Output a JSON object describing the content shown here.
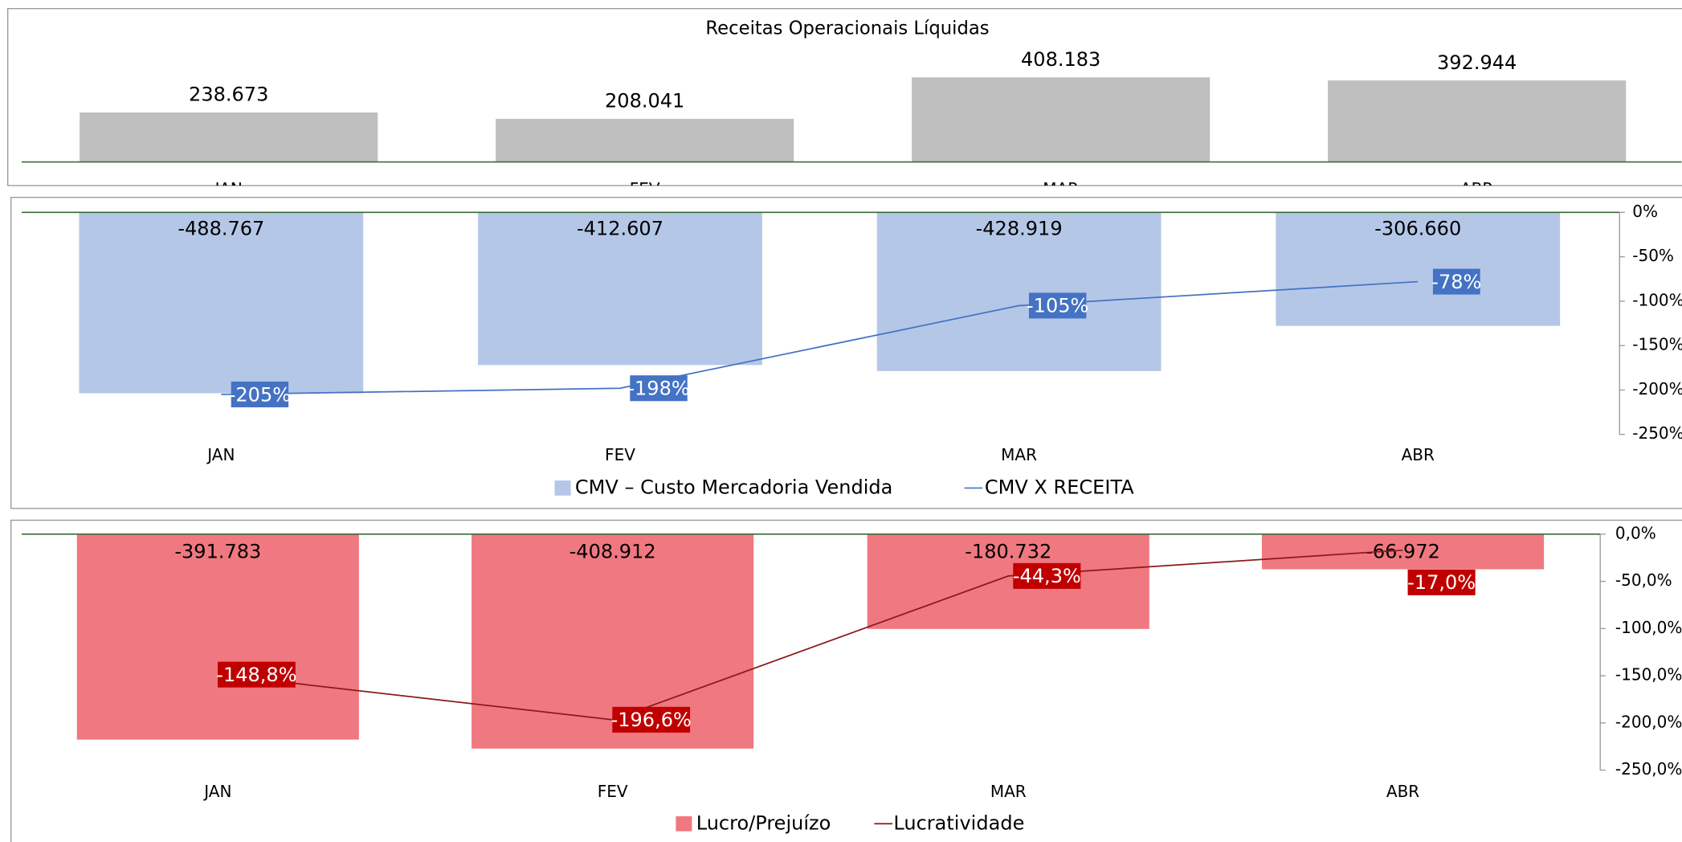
{
  "chart_data": [
    {
      "type": "bar",
      "title": "Receitas Operacionais Líquidas",
      "categories": [
        "JAN",
        "FEV",
        "MAR",
        "ABR"
      ],
      "values": [
        238673,
        208041,
        408183,
        392944
      ],
      "value_labels": [
        "238.673",
        "208.041",
        "408.183",
        "392.944"
      ],
      "color": "#bfbfbf",
      "ylim": [
        0,
        450000
      ]
    },
    {
      "type": "combo",
      "categories": [
        "JAN",
        "FEV",
        "MAR",
        "ABR"
      ],
      "series": [
        {
          "name": "CMV – Custo Mercadoria Vendida",
          "type": "bar",
          "color": "#b4c7e7",
          "values": [
            -488767,
            -412607,
            -428919,
            -306660
          ],
          "value_labels": [
            "-488.767",
            "-412.607",
            "-428.919",
            "-306.660"
          ]
        },
        {
          "name": "CMV X RECEITA",
          "type": "line",
          "axis": "y2",
          "color": "#4472c4",
          "values": [
            -205,
            -198,
            -105,
            -78
          ],
          "value_labels": [
            "-205%",
            "-198%",
            "-105%",
            "-78%"
          ]
        }
      ],
      "ylim": [
        -600000,
        0
      ],
      "y2lim": [
        -250,
        0
      ],
      "y2ticks": [
        {
          "value": 0,
          "label": "0%"
        },
        {
          "value": -50,
          "label": "-50%"
        },
        {
          "value": -100,
          "label": "-100%"
        },
        {
          "value": -150,
          "label": "-150%"
        },
        {
          "value": -200,
          "label": "-200%"
        },
        {
          "value": -250,
          "label": "-250%"
        }
      ]
    },
    {
      "type": "combo",
      "categories": [
        "JAN",
        "FEV",
        "MAR",
        "ABR"
      ],
      "series": [
        {
          "name": "Lucro/Prejuízo",
          "type": "bar",
          "color": "#f07880",
          "values": [
            -391783,
            -408912,
            -180732,
            -66972
          ],
          "value_labels": [
            "-391.783",
            "-408.912",
            "-180.732",
            "-66.972"
          ]
        },
        {
          "name": "Lucratividade",
          "type": "line",
          "axis": "y2",
          "color": "#8b1a1a",
          "values": [
            -148.8,
            -196.6,
            -44.3,
            -17.0
          ],
          "value_labels": [
            "-148,8%",
            "-196,6%",
            "-44,3%",
            "-17,0%"
          ]
        }
      ],
      "ylim": [
        -450000,
        0
      ],
      "y2lim": [
        -250,
        0
      ],
      "y2ticks": [
        {
          "value": 0,
          "label": "0,0%"
        },
        {
          "value": -50,
          "label": "-50,0%"
        },
        {
          "value": -100,
          "label": "-100,0%"
        },
        {
          "value": -150,
          "label": "-150,0%"
        },
        {
          "value": -200,
          "label": "-200,0%"
        },
        {
          "value": -250,
          "label": "-250,0%"
        }
      ]
    }
  ]
}
